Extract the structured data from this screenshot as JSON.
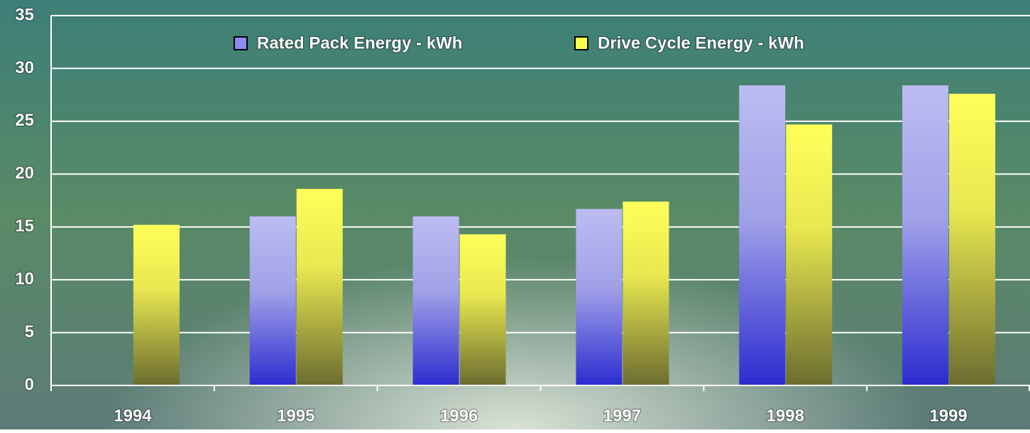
{
  "chart_data": {
    "type": "bar",
    "categories": [
      "1994",
      "1995",
      "1996",
      "1997",
      "1998",
      "1999"
    ],
    "series": [
      {
        "name": "Rated Pack Energy - kWh",
        "color": "#8c8cf0",
        "values": [
          null,
          16.0,
          16.0,
          16.7,
          28.4,
          28.4
        ]
      },
      {
        "name": "Drive Cycle Energy - kWh",
        "color": "#ffff50",
        "values": [
          15.2,
          18.6,
          14.3,
          17.4,
          24.7,
          27.6
        ]
      }
    ],
    "ylim": [
      0,
      35
    ],
    "yticks": [
      0,
      5,
      10,
      15,
      20,
      25,
      30,
      35
    ],
    "grid": true,
    "legend": "top"
  }
}
